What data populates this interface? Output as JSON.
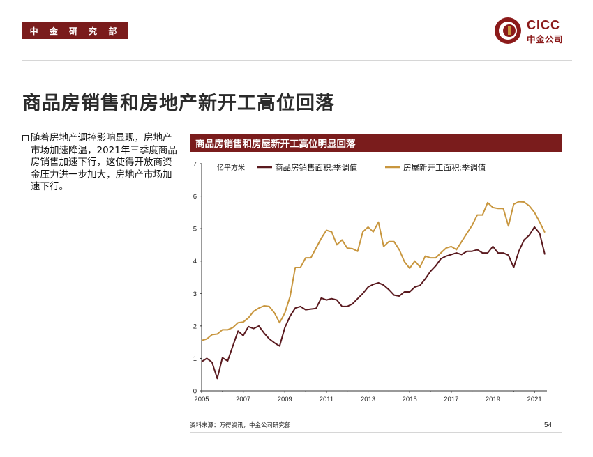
{
  "header": {
    "department": "中 金 研 究 部",
    "logo_en": "CICC",
    "logo_cn": "中金公司"
  },
  "colors": {
    "brand": "#7a1c1c",
    "series_sales": "#5a1a1f",
    "series_starts": "#c8963e"
  },
  "slide": {
    "title": "商品房销售和房地产新开工高位回落",
    "bullet": "随着房地产调控影响显现，房地产市场加速降温，2021年三季度商品房销售加速下行，这使得开放商资金压力进一步加大，房地产市场加速下行。"
  },
  "chart_data": {
    "type": "line",
    "title": "商品房销售和房屋新开工高位明显回落",
    "ylabel": "亿平方米",
    "xlabel": "",
    "ylim": [
      0,
      7
    ],
    "xlim": [
      2005,
      2021.6
    ],
    "yticks": [
      "0",
      "1",
      "2",
      "3",
      "4",
      "5",
      "6",
      "7"
    ],
    "xticks": [
      "2005",
      "2007",
      "2009",
      "2011",
      "2013",
      "2015",
      "2017",
      "2019",
      "2021"
    ],
    "legend_position": "top",
    "x": [
      2005.0,
      2005.25,
      2005.5,
      2005.75,
      2006.0,
      2006.25,
      2006.5,
      2006.75,
      2007.0,
      2007.25,
      2007.5,
      2007.75,
      2008.0,
      2008.25,
      2008.5,
      2008.75,
      2009.0,
      2009.25,
      2009.5,
      2009.75,
      2010.0,
      2010.25,
      2010.5,
      2010.75,
      2011.0,
      2011.25,
      2011.5,
      2011.75,
      2012.0,
      2012.25,
      2012.5,
      2012.75,
      2013.0,
      2013.25,
      2013.5,
      2013.75,
      2014.0,
      2014.25,
      2014.5,
      2014.75,
      2015.0,
      2015.25,
      2015.5,
      2015.75,
      2016.0,
      2016.25,
      2016.5,
      2016.75,
      2017.0,
      2017.25,
      2017.5,
      2017.75,
      2018.0,
      2018.25,
      2018.5,
      2018.75,
      2019.0,
      2019.25,
      2019.5,
      2019.75,
      2020.0,
      2020.25,
      2020.5,
      2020.75,
      2021.0,
      2021.25,
      2021.5
    ],
    "series": [
      {
        "name": "商品房销售面积:季调值",
        "values": [
          0.9,
          1.0,
          0.88,
          0.38,
          1.02,
          0.92,
          1.38,
          1.84,
          1.7,
          1.98,
          1.92,
          2.0,
          1.78,
          1.6,
          1.48,
          1.38,
          1.95,
          2.3,
          2.55,
          2.6,
          2.5,
          2.52,
          2.54,
          2.86,
          2.8,
          2.84,
          2.8,
          2.6,
          2.6,
          2.68,
          2.84,
          3.0,
          3.2,
          3.28,
          3.33,
          3.26,
          3.12,
          2.95,
          2.92,
          3.05,
          3.05,
          3.2,
          3.25,
          3.45,
          3.68,
          3.85,
          4.07,
          4.15,
          4.2,
          4.25,
          4.2,
          4.3,
          4.3,
          4.35,
          4.25,
          4.25,
          4.45,
          4.25,
          4.25,
          4.18,
          3.8,
          4.3,
          4.65,
          4.8,
          5.05,
          4.85,
          4.2
        ]
      },
      {
        "name": "房屋新开工面积:季调值",
        "values": [
          1.55,
          1.6,
          1.73,
          1.75,
          1.88,
          1.88,
          1.95,
          2.1,
          2.12,
          2.25,
          2.45,
          2.55,
          2.62,
          2.6,
          2.4,
          2.1,
          2.4,
          2.9,
          3.8,
          3.8,
          4.1,
          4.1,
          4.4,
          4.7,
          4.95,
          4.9,
          4.5,
          4.65,
          4.4,
          4.38,
          4.3,
          4.9,
          5.05,
          4.9,
          5.2,
          4.45,
          4.6,
          4.6,
          4.35,
          3.98,
          3.78,
          4.0,
          3.82,
          4.15,
          4.1,
          4.1,
          4.25,
          4.4,
          4.45,
          4.35,
          4.6,
          4.85,
          5.1,
          5.42,
          5.42,
          5.8,
          5.65,
          5.62,
          5.62,
          5.08,
          5.75,
          5.83,
          5.82,
          5.7,
          5.5,
          5.2,
          4.88
        ]
      }
    ]
  },
  "footer": {
    "source": "资料来源：万得资讯，中金公司研究部",
    "page": "54"
  }
}
